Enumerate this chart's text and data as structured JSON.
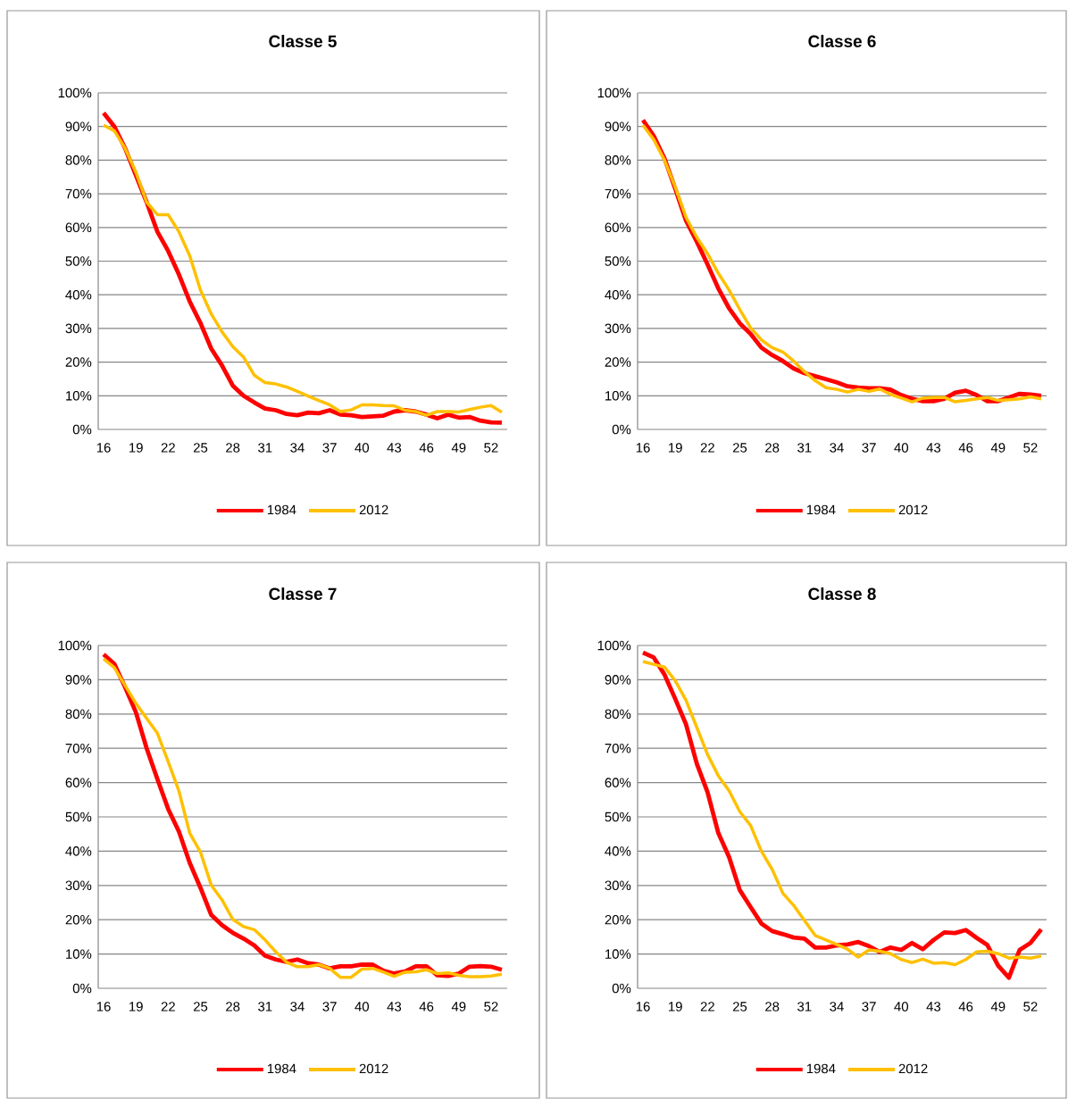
{
  "chart_data": [
    {
      "type": "line",
      "title": "Classe 5",
      "categories": [
        "16",
        null,
        null,
        "19",
        null,
        null,
        "22",
        null,
        null,
        "25",
        null,
        null,
        "28",
        null,
        null,
        "31",
        null,
        null,
        "34",
        null,
        null,
        "37",
        null,
        null,
        "40",
        null,
        null,
        "43",
        null,
        null,
        "46",
        null,
        null,
        "49",
        null,
        null,
        "52",
        null
      ],
      "series": [
        {
          "name": "1984",
          "color": "#ff0000",
          "values": [
            94,
            90,
            83.5,
            75.5,
            67.5,
            58.7,
            53,
            46,
            38,
            31.6,
            24,
            19,
            13,
            10,
            8,
            6.2,
            5.7,
            4.6,
            4.2,
            5,
            4.8,
            5.7,
            4.4,
            4.2,
            3.7,
            3.9,
            4.1,
            5.3,
            5.7,
            5.3,
            4.4,
            3.3,
            4.4,
            3.5,
            3.7,
            2.6,
            2.1,
            2
          ]
        },
        {
          "name": "2012",
          "color": "#ffc000",
          "values": [
            90.4,
            88.7,
            83.5,
            76.4,
            67.5,
            63.8,
            63.8,
            58.7,
            51.6,
            41.4,
            34.3,
            29,
            24.6,
            21.5,
            16.1,
            13.9,
            13.5,
            12.6,
            11.3,
            9.9,
            8.6,
            7.3,
            5.3,
            5.8,
            7.3,
            7.3,
            7.1,
            7,
            5.7,
            5.3,
            4.2,
            5.3,
            5.3,
            5.2,
            5.9,
            6.6,
            7.1,
            5.1
          ]
        }
      ],
      "ylim": [
        0,
        100
      ],
      "yticks": [
        {
          "value": 0,
          "label": "0%"
        },
        {
          "value": 10,
          "label": "10%"
        },
        {
          "value": 20,
          "label": "20%"
        },
        {
          "value": 30,
          "label": "30%"
        },
        {
          "value": 40,
          "label": "40%"
        },
        {
          "value": 50,
          "label": "50%"
        },
        {
          "value": 60,
          "label": "60%"
        },
        {
          "value": 70,
          "label": "70%"
        },
        {
          "value": 80,
          "label": "80%"
        },
        {
          "value": 90,
          "label": "90%"
        },
        {
          "value": 100,
          "label": "100%"
        }
      ],
      "grid": "y",
      "legend": "bottom",
      "marker": "none",
      "line_style": "solid"
    },
    {
      "type": "line",
      "title": "Classe 6",
      "categories": [
        "16",
        null,
        null,
        "19",
        null,
        null,
        "22",
        null,
        null,
        "25",
        null,
        null,
        "28",
        null,
        null,
        "31",
        null,
        null,
        "34",
        null,
        null,
        "37",
        null,
        null,
        "40",
        null,
        null,
        "43",
        null,
        null,
        "46",
        null,
        null,
        "49",
        null,
        null,
        "52",
        null
      ],
      "series": [
        {
          "name": "1984",
          "color": "#ff0000",
          "values": [
            91.9,
            87.2,
            80.5,
            71.5,
            62,
            55.8,
            49,
            41.9,
            36,
            31.5,
            28.4,
            24.3,
            22.1,
            20.3,
            18.1,
            16.7,
            15.8,
            14.9,
            14,
            12.8,
            12.4,
            12.2,
            12.2,
            11.8,
            10.2,
            9.1,
            8.4,
            8.4,
            9.1,
            10.9,
            11.5,
            10.2,
            8.4,
            8.4,
            9.5,
            10.6,
            10.4,
            10
          ]
        },
        {
          "name": "2012",
          "color": "#ffc000",
          "values": [
            90.4,
            86.1,
            80,
            72,
            63,
            57.1,
            52.2,
            46.4,
            41.4,
            35.6,
            30.2,
            26.6,
            24.3,
            23,
            20.3,
            17.2,
            14.5,
            12.4,
            11.9,
            11.1,
            11.9,
            11.3,
            12,
            10.4,
            9.3,
            8.2,
            9.3,
            9.5,
            9.5,
            8.2,
            8.6,
            9.1,
            9.5,
            8.6,
            8.8,
            9.1,
            9.7,
            9.1
          ]
        }
      ],
      "ylim": [
        0,
        100
      ],
      "yticks": [
        {
          "value": 0,
          "label": "0%"
        },
        {
          "value": 10,
          "label": "10%"
        },
        {
          "value": 20,
          "label": "20%"
        },
        {
          "value": 30,
          "label": "30%"
        },
        {
          "value": 40,
          "label": "40%"
        },
        {
          "value": 50,
          "label": "50%"
        },
        {
          "value": 60,
          "label": "60%"
        },
        {
          "value": 70,
          "label": "70%"
        },
        {
          "value": 80,
          "label": "80%"
        },
        {
          "value": 90,
          "label": "90%"
        },
        {
          "value": 100,
          "label": "100%"
        }
      ],
      "grid": "y",
      "legend": "bottom",
      "marker": "none",
      "line_style": "solid"
    },
    {
      "type": "line",
      "title": "Classe 7",
      "categories": [
        "16",
        null,
        null,
        "19",
        null,
        null,
        "22",
        null,
        null,
        "25",
        null,
        null,
        "28",
        null,
        null,
        "31",
        null,
        null,
        "34",
        null,
        null,
        "37",
        null,
        null,
        "40",
        null,
        null,
        "43",
        null,
        null,
        "46",
        null,
        null,
        "49",
        null,
        null,
        "52",
        null
      ],
      "series": [
        {
          "name": "1984",
          "color": "#ff0000",
          "values": [
            97.4,
            94.6,
            87.8,
            80.5,
            70,
            61,
            52.3,
            45.7,
            36.6,
            29.3,
            21.4,
            18.4,
            16.2,
            14.5,
            12.5,
            9.5,
            8.4,
            7.7,
            8.4,
            7.3,
            6.9,
            5.8,
            6.4,
            6.4,
            6.9,
            6.9,
            5.1,
            4.3,
            4.9,
            6.4,
            6.4,
            3.8,
            3.6,
            4.3,
            6.3,
            6.5,
            6.3,
            5.4
          ]
        },
        {
          "name": "2012",
          "color": "#ffc000",
          "values": [
            96.1,
            93.5,
            88.3,
            83.1,
            78.7,
            74.4,
            66.1,
            57.5,
            45.3,
            39.7,
            30.1,
            25.8,
            20.1,
            18,
            17.1,
            14.1,
            10.6,
            7.6,
            6.3,
            6.3,
            6.9,
            5.8,
            3.2,
            3.2,
            5.6,
            5.8,
            4.7,
            3.5,
            4.7,
            4.8,
            5.4,
            4.3,
            4.5,
            3.8,
            3.4,
            3.4,
            3.6,
            4.1
          ]
        }
      ],
      "ylim": [
        0,
        100
      ],
      "yticks": [
        {
          "value": 0,
          "label": "0%"
        },
        {
          "value": 10,
          "label": "10%"
        },
        {
          "value": 20,
          "label": "20%"
        },
        {
          "value": 30,
          "label": "30%"
        },
        {
          "value": 40,
          "label": "40%"
        },
        {
          "value": 50,
          "label": "50%"
        },
        {
          "value": 60,
          "label": "60%"
        },
        {
          "value": 70,
          "label": "70%"
        },
        {
          "value": 80,
          "label": "80%"
        },
        {
          "value": 90,
          "label": "90%"
        },
        {
          "value": 100,
          "label": "100%"
        }
      ],
      "grid": "y",
      "legend": "bottom",
      "marker": "none",
      "line_style": "solid"
    },
    {
      "type": "line",
      "title": "Classe 8",
      "categories": [
        "16",
        null,
        null,
        "19",
        null,
        null,
        "22",
        null,
        null,
        "25",
        null,
        null,
        "28",
        null,
        null,
        "31",
        null,
        null,
        "34",
        null,
        null,
        "37",
        null,
        null,
        "40",
        null,
        null,
        "43",
        null,
        null,
        "46",
        null,
        null,
        "49",
        null,
        null,
        "52",
        null
      ],
      "series": [
        {
          "name": "1984",
          "color": "#ff0000",
          "values": [
            97.9,
            96.5,
            91.5,
            84.4,
            77,
            65.5,
            57.2,
            45.3,
            38.3,
            28.6,
            23.7,
            18.9,
            16.7,
            15.8,
            14.8,
            14.5,
            11.9,
            11.9,
            12.5,
            12.8,
            13.5,
            12.3,
            10.6,
            11.9,
            11.2,
            13.2,
            11.4,
            14.1,
            16.3,
            16.1,
            17,
            14.7,
            12.6,
            6.6,
            3.1,
            11.2,
            13.2,
            17.2
          ]
        },
        {
          "name": "2012",
          "color": "#ffc000",
          "values": [
            95.3,
            94.5,
            93.7,
            89.7,
            84,
            76.1,
            68.2,
            62,
            57.6,
            51.5,
            47.5,
            40,
            34.7,
            27.7,
            24.2,
            19.8,
            15.4,
            14.1,
            12.8,
            11.4,
            9.1,
            11.2,
            10.8,
            10.1,
            8.4,
            7.5,
            8.5,
            7.3,
            7.5,
            6.9,
            8.4,
            10.6,
            10.8,
            10.1,
            8.8,
            9.1,
            8.8,
            9.4
          ]
        }
      ],
      "ylim": [
        0,
        100
      ],
      "yticks": [
        {
          "value": 0,
          "label": "0%"
        },
        {
          "value": 10,
          "label": "10%"
        },
        {
          "value": 20,
          "label": "20%"
        },
        {
          "value": 30,
          "label": "30%"
        },
        {
          "value": 40,
          "label": "40%"
        },
        {
          "value": 50,
          "label": "50%"
        },
        {
          "value": 60,
          "label": "60%"
        },
        {
          "value": 70,
          "label": "70%"
        },
        {
          "value": 80,
          "label": "80%"
        },
        {
          "value": 90,
          "label": "90%"
        },
        {
          "value": 100,
          "label": "100%"
        }
      ],
      "grid": "y",
      "legend": "bottom",
      "marker": "none",
      "line_style": "solid"
    }
  ]
}
